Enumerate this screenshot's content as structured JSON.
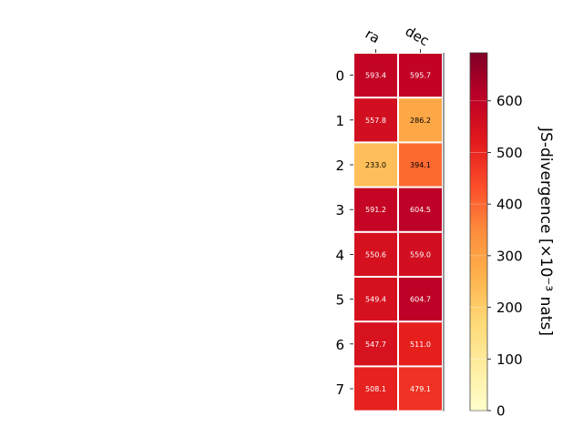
{
  "chart_data": {
    "type": "heatmap",
    "columns": [
      "ra",
      "dec"
    ],
    "rows": [
      "0",
      "1",
      "2",
      "3",
      "4",
      "5",
      "6",
      "7"
    ],
    "values": [
      [
        593.4,
        595.7
      ],
      [
        557.8,
        286.2
      ],
      [
        233.0,
        394.1
      ],
      [
        591.2,
        604.5
      ],
      [
        550.6,
        559.0
      ],
      [
        549.4,
        604.7
      ],
      [
        547.7,
        511.0
      ],
      [
        508.1,
        479.1
      ]
    ],
    "colorbar": {
      "label": "JS-divergence [×10⁻³ nats]",
      "range": [
        0,
        693
      ],
      "ticks": [
        0,
        100,
        200,
        300,
        400,
        500,
        600
      ],
      "colormap": "YlOrRd"
    }
  }
}
